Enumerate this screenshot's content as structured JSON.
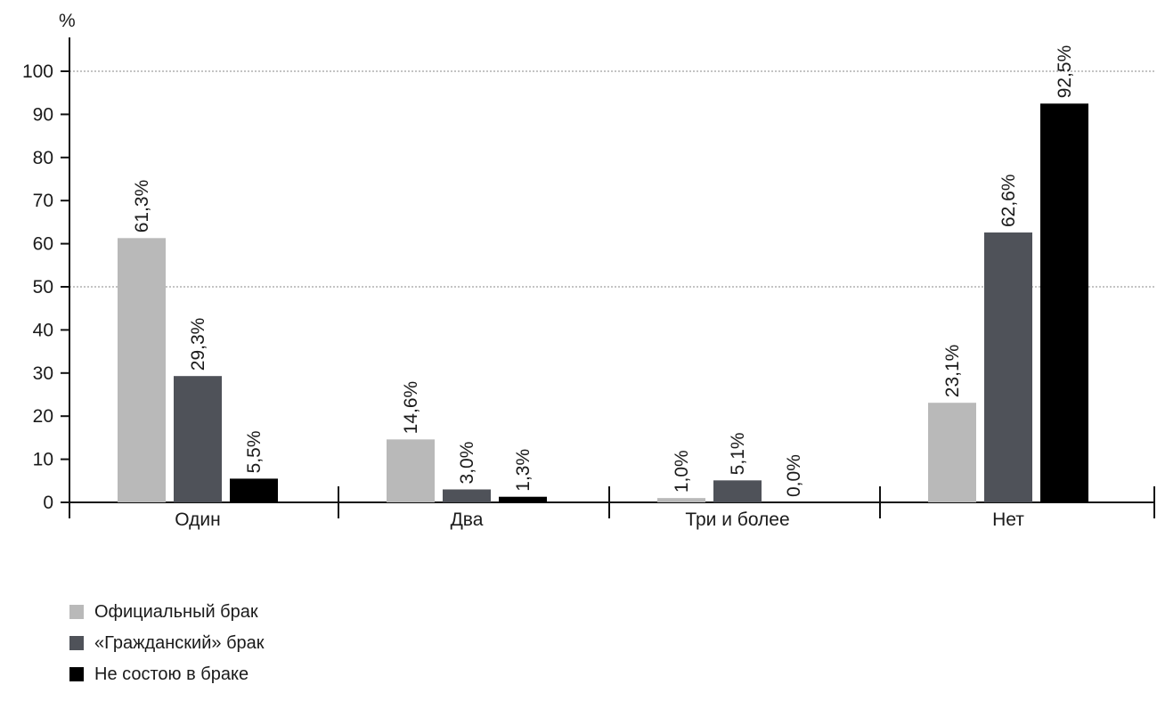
{
  "chart_data": {
    "type": "bar",
    "ylabel": "%",
    "ylim": [
      0,
      100
    ],
    "yticks": [
      0,
      10,
      20,
      30,
      40,
      50,
      60,
      70,
      80,
      90,
      100
    ],
    "gridlines": [
      50,
      100
    ],
    "categories": [
      "Один",
      "Два",
      "Три и более",
      "Нет"
    ],
    "series": [
      {
        "name": "Официальный брак",
        "color": "#b9b9b9",
        "values": [
          61.3,
          14.6,
          1.0,
          23.1
        ],
        "labels": [
          "61,3%",
          "14,6%",
          "1,0%",
          "23,1%"
        ]
      },
      {
        "name": "«Гражданский» брак",
        "color": "#4f5259",
        "values": [
          29.3,
          3.0,
          5.1,
          62.6
        ],
        "labels": [
          "29,3%",
          "3,0%",
          "5,1%",
          "62,6%"
        ]
      },
      {
        "name": "Не состою в браке",
        "color": "#000000",
        "values": [
          5.5,
          1.3,
          0.0,
          92.5
        ],
        "labels": [
          "5,5%",
          "1,3%",
          "0,0%",
          "92,5%"
        ]
      }
    ],
    "legend_position": "bottom-left",
    "grid": true
  }
}
